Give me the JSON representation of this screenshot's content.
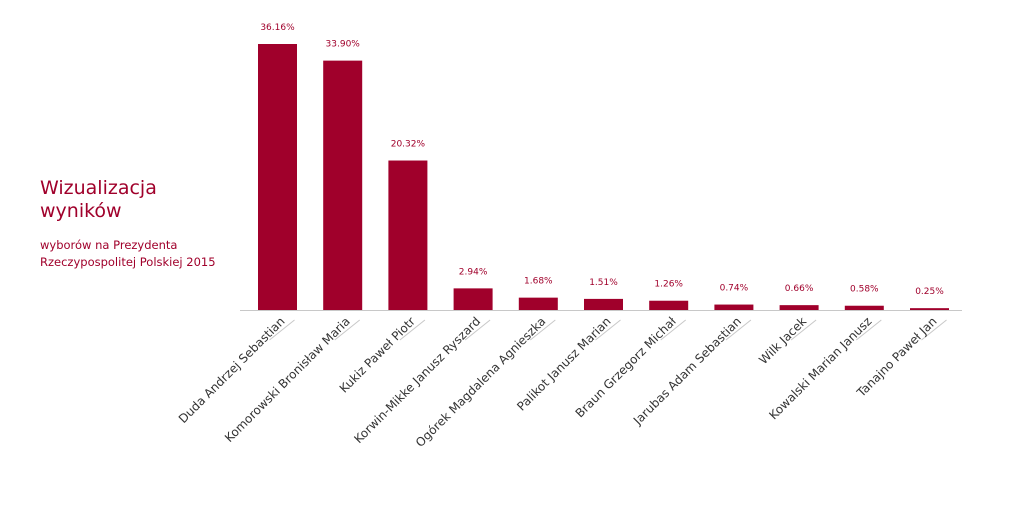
{
  "header": {
    "title_line1": "Wizualizacja",
    "title_line2": "wyników",
    "subtitle_line1": "wyborów na Prezydenta",
    "subtitle_line2": "Rzeczypospolitej Polskiej 2015"
  },
  "colors": {
    "bar": "#a0002b",
    "label": "#a0002b",
    "axis": "#c8c8c8",
    "tick_label": "#333333"
  },
  "chart_data": {
    "type": "bar",
    "categories": [
      "Duda Andrzej Sebastian",
      "Komorowski Bronisław Maria",
      "Kukiz Paweł Piotr",
      "Korwin-Mikke Janusz Ryszard",
      "Ogórek Magdalena Agnieszka",
      "Palikot Janusz Marian",
      "Braun Grzegorz Michał",
      "Jarubas Adam Sebastian",
      "Wilk Jacek",
      "Kowalski Marian Janusz",
      "Tanajno Paweł Jan"
    ],
    "values": [
      36.16,
      33.9,
      20.32,
      2.94,
      1.68,
      1.51,
      1.26,
      0.74,
      0.66,
      0.58,
      0.25
    ],
    "value_labels": [
      "36.16%",
      "33.90%",
      "20.32%",
      "2.94%",
      "1.68%",
      "1.51%",
      "1.26%",
      "0.74%",
      "0.66%",
      "0.58%",
      "0.25%"
    ],
    "ylim": [
      0,
      36.16
    ],
    "grid": false,
    "legend": "none"
  }
}
